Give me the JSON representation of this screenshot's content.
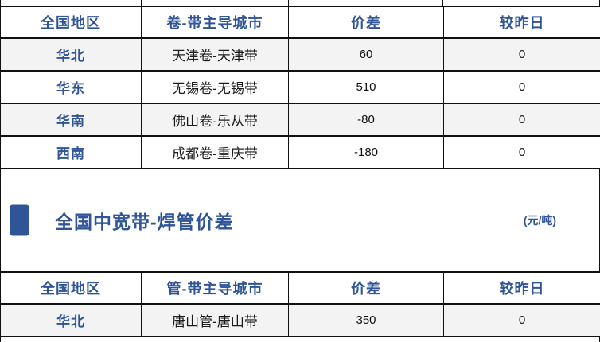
{
  "colors": {
    "accent_blue": "#2F5597",
    "banded_row": "#f3f3f3",
    "grid_border": "#111111"
  },
  "section": {
    "title": "全国中宽带-焊管价差",
    "unit_label": "(元/吨)"
  },
  "table1": {
    "headers": [
      "全国地区",
      "卷-带主导城市",
      "价差",
      "较昨日"
    ],
    "rows": [
      {
        "region": "华北",
        "cities": "天津卷-天津带",
        "spread": "60",
        "vs_yesterday": "0"
      },
      {
        "region": "华东",
        "cities": "无锡卷-无锡带",
        "spread": "510",
        "vs_yesterday": "0"
      },
      {
        "region": "华南",
        "cities": "佛山卷-乐从带",
        "spread": "-80",
        "vs_yesterday": "0"
      },
      {
        "region": "西南",
        "cities": "成都卷-重庆带",
        "spread": "-180",
        "vs_yesterday": "0"
      }
    ]
  },
  "table2": {
    "headers": [
      "全国地区",
      "管-带主导城市",
      "价差",
      "较昨日"
    ],
    "rows": [
      {
        "region": "华北",
        "cities": "唐山管-唐山带",
        "spread": "350",
        "vs_yesterday": "0"
      }
    ]
  }
}
